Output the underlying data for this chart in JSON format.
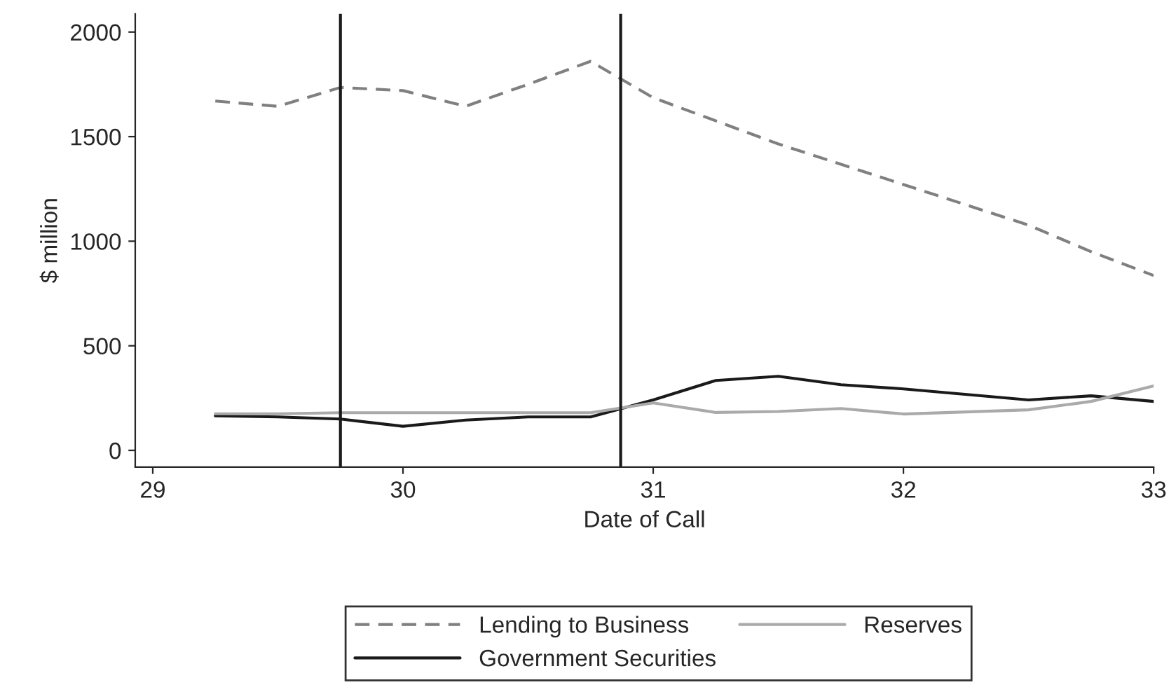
{
  "chart_data": {
    "type": "line",
    "xlabel": "Date of Call",
    "ylabel": "$ million",
    "x": [
      29.25,
      29.5,
      29.75,
      30,
      30.25,
      30.5,
      30.75,
      31,
      31.25,
      31.5,
      31.75,
      32,
      32.5,
      32.75,
      33
    ],
    "series": [
      {
        "name": "Lending to Business",
        "color": "#808080",
        "line_style": "dashed",
        "values": [
          1670,
          1645,
          1735,
          1720,
          1645,
          1750,
          1860,
          1686,
          null,
          1465,
          null,
          1271,
          1077,
          950,
          836
        ]
      },
      {
        "name": "Government Securities",
        "color": "#1a1a1a",
        "line_style": "solid",
        "values": [
          165,
          160,
          150,
          115,
          145,
          160,
          160,
          241,
          334,
          354,
          314,
          294,
          241,
          261,
          234
        ]
      },
      {
        "name": "Reserves",
        "color": "#aaaaaa",
        "line_style": "solid",
        "values": [
          175,
          175,
          180,
          180,
          180,
          180,
          180,
          227,
          181,
          186,
          200,
          174,
          194,
          234,
          308
        ]
      }
    ],
    "xlim": [
      28.93,
      33.0
    ],
    "ylim": [
      -80,
      2087
    ],
    "xticks": [
      29,
      30,
      31,
      32,
      33
    ],
    "yticks": [
      0,
      500,
      1000,
      1500,
      2000
    ],
    "ref_lines": [
      {
        "axis": "x",
        "value": 29.75,
        "color": "#1a1a1a"
      },
      {
        "axis": "x",
        "value": 30.87,
        "color": "#1a1a1a"
      }
    ],
    "grid": false,
    "legend": "bottom"
  }
}
